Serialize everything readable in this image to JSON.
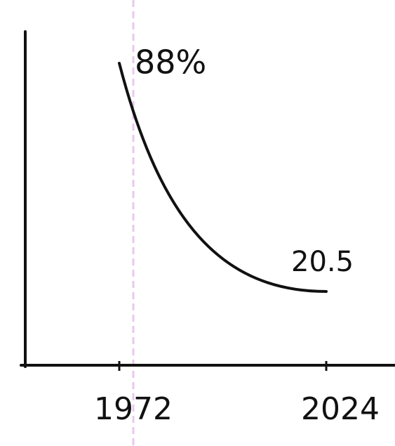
{
  "chart_data": {
    "type": "line",
    "x": [
      1972,
      2024
    ],
    "values": [
      88,
      20.5
    ],
    "value_labels": [
      "88%",
      "20.5"
    ],
    "xticks": [
      1972,
      2024
    ],
    "color": "#111111"
  }
}
